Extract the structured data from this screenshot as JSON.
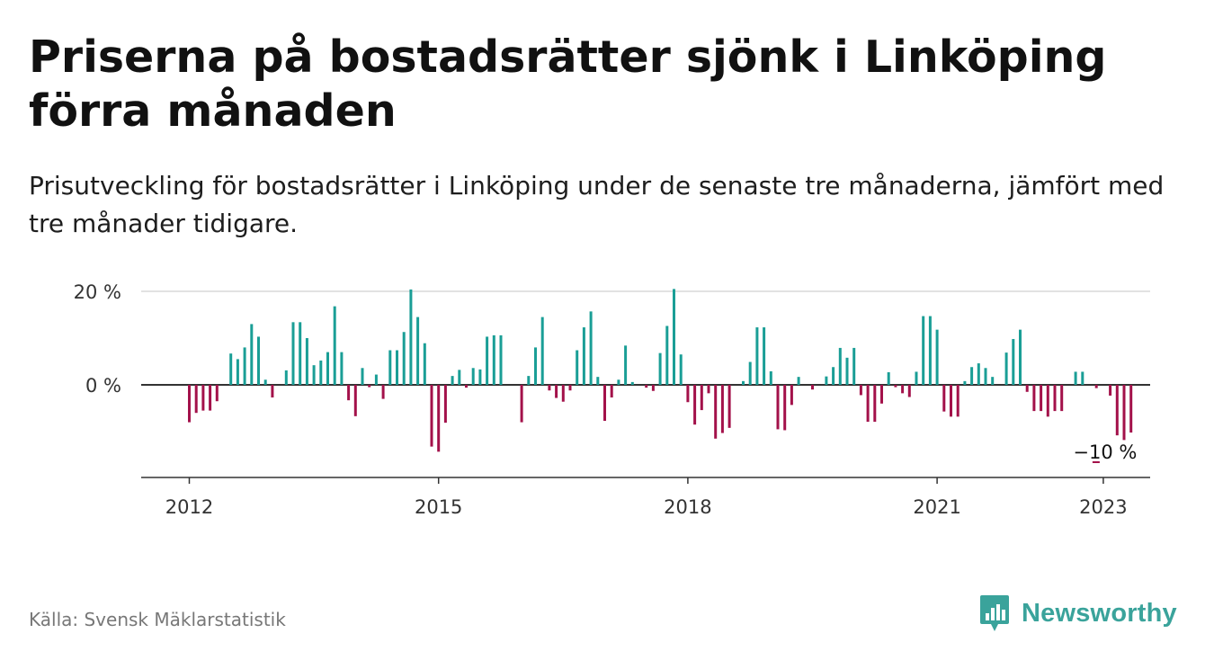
{
  "header": {
    "title": "Priserna på bostadsrätter sjönk i Linköping förra månaden",
    "subtitle": "Prisutveckling för bostadsrätter i Linköping under de senaste tre månaderna, jämfört med tre månader tidigare."
  },
  "footer": {
    "source": "Källa: Svensk Mäklarstatistik",
    "brand": "Newsworthy",
    "brand_icon": "bar-chart-speech-bubble-icon"
  },
  "colors": {
    "positive": "#1a9e96",
    "negative": "#a3114a",
    "brand": "#3aa39b",
    "grid": "#d9d9d9",
    "zero_line": "#333333"
  },
  "chart_data": {
    "type": "bar",
    "title": "",
    "xlabel": "",
    "ylabel": "",
    "x_start": "2012-01",
    "y_ticks": [
      {
        "value": 20,
        "label": "20 %"
      },
      {
        "value": 0,
        "label": "0 %"
      }
    ],
    "x_ticks": [
      {
        "index": 0,
        "label": "2012"
      },
      {
        "index": 36,
        "label": "2015"
      },
      {
        "index": 72,
        "label": "2018"
      },
      {
        "index": 108,
        "label": "2021"
      },
      {
        "index": 132,
        "label": "2023"
      }
    ],
    "ylim": [
      -20,
      20
    ],
    "grid": true,
    "annotation": {
      "index": 132,
      "label": "−10 %"
    },
    "values": [
      -8,
      -6,
      -5.5,
      -5.5,
      -3.5,
      0,
      6.7,
      5.5,
      8,
      13,
      10.3,
      1.1,
      -2.7,
      0,
      3.1,
      13.4,
      13.4,
      10,
      4.2,
      5.2,
      7,
      16.8,
      7,
      -3.3,
      -6.7,
      3.6,
      -0.5,
      2.2,
      -3,
      7.4,
      7.4,
      11.3,
      20.4,
      14.5,
      8.9,
      -13.2,
      -14.3,
      -8.1,
      1.9,
      3.2,
      -0.6,
      3.6,
      3.3,
      10.3,
      10.6,
      10.6,
      0,
      0,
      -8,
      1.9,
      8,
      14.5,
      -1.2,
      -2.8,
      -3.6,
      -1.2,
      7.4,
      12.3,
      15.7,
      1.7,
      -7.7,
      -2.7,
      1.1,
      8.4,
      0.6,
      0,
      -0.6,
      -1.3,
      6.8,
      12.6,
      20.5,
      6.5,
      -3.7,
      -8.5,
      -5.4,
      -1.8,
      -11.5,
      -10.3,
      -9.2,
      0,
      0.8,
      4.9,
      12.3,
      12.3,
      2.9,
      -9.5,
      -9.7,
      -4.3,
      1.7,
      0,
      -1,
      0,
      1.8,
      3.8,
      7.9,
      5.8,
      7.9,
      -2.2,
      -7.9,
      -7.9,
      -4,
      2.7,
      -0.5,
      -1.8,
      -2.6,
      2.8,
      14.7,
      14.7,
      11.8,
      -5.7,
      -6.8,
      -6.8,
      0.8,
      3.8,
      4.6,
      3.6,
      1.7,
      0,
      6.9,
      9.8,
      11.8,
      -1.5,
      -5.6,
      -5.6,
      -6.8,
      -5.6,
      -5.6,
      0,
      2.8,
      2.8,
      0,
      -0.7,
      0,
      -2.3,
      -10.8,
      -11.8,
      -10.2
    ]
  }
}
